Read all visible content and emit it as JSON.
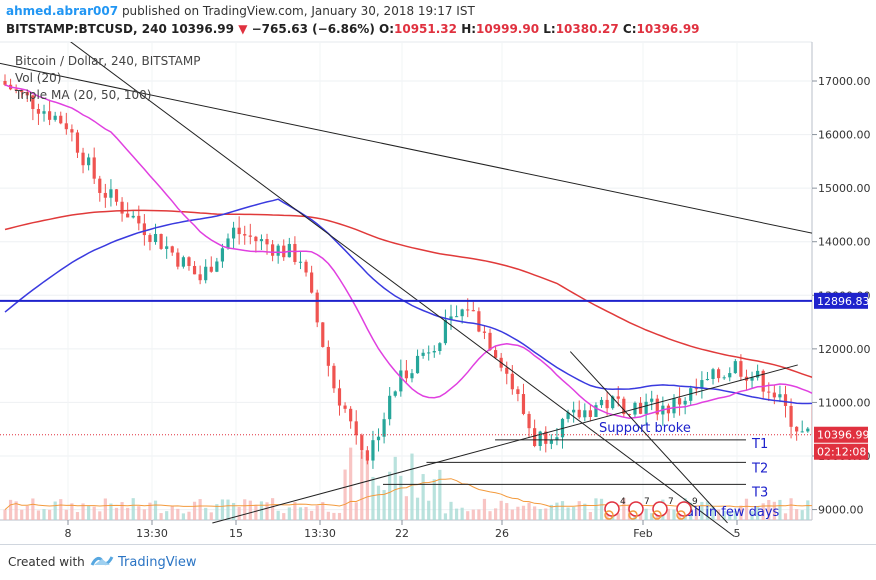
{
  "header": {
    "author": "ahmed.abrar007",
    "publish_text": "published on TradingView.com, January 30, 2018 19:17 IST"
  },
  "symbol_bar": {
    "symbol": "BITSTAMP:BTCUSD, 240",
    "last": "10396.99",
    "change": "−765.63 (−6.86%)",
    "open_label": "O:",
    "open": "10951.32",
    "high_label": "H:",
    "high": "10999.90",
    "low_label": "L:",
    "low": "10380.27",
    "close_label": "C:",
    "close": "10396.99",
    "down_color": "#e0313f"
  },
  "legend": {
    "title": "Bitcoin / Dollar, 240, BITSTAMP",
    "vol": "Vol (20)",
    "ma": "Triple MA (20, 50, 100)"
  },
  "footer": {
    "created_with": "Created with",
    "brand": "TradingView"
  },
  "chart_data": {
    "type": "candlestick",
    "y_axis": {
      "ticks": [
        9000,
        10000,
        11000,
        12000,
        13000,
        14000,
        15000,
        16000,
        17000
      ],
      "tick_labels": [
        "9000.00",
        "10000.00",
        "11000.00",
        "12000.00",
        "13000.00",
        "14000.00",
        "15000.00",
        "16000.00",
        "17000.00"
      ],
      "range": [
        8750,
        17700
      ]
    },
    "x_axis": {
      "tick_labels": [
        "8",
        "13:30",
        "15",
        "13:30",
        "22",
        "26",
        "Feb",
        "5"
      ],
      "range_days": [
        "Jan 6",
        "Feb 6"
      ]
    },
    "price_markers": [
      {
        "label": "12896.83",
        "value": 12896.83,
        "color": "#1e22cc"
      },
      {
        "label": "10396.99",
        "value": 10396.99,
        "color": "#e0313f"
      },
      {
        "label": "02:12:08",
        "color": "#e0313f"
      }
    ],
    "horizontal_line": {
      "value": 12896.83,
      "color": "#1e22cc"
    },
    "last_price_line": {
      "value": 10396.99,
      "color": "#e0313f"
    },
    "targets": [
      {
        "label": "T1",
        "value": 10300
      },
      {
        "label": "T2",
        "value": 9880
      },
      {
        "label": "T3",
        "value": 9470
      }
    ],
    "annotations": [
      {
        "text": "Support broke",
        "color": "#1e22cc"
      },
      {
        "text": "all in few days",
        "color": "#1e22cc"
      }
    ],
    "event_badges": [
      "4",
      "7",
      "7",
      "9"
    ],
    "ma_colors": {
      "ma20": "#e040e0",
      "ma50": "#3a3adf",
      "ma100": "#e03a3a"
    },
    "candle_colors": {
      "up": "#26a69a",
      "down": "#ef5350"
    },
    "key_prices": [
      {
        "time": "Jan 6",
        "price": 17000
      },
      {
        "time": "Jan 8",
        "price": 16200
      },
      {
        "time": "Jan 9",
        "price": 15000
      },
      {
        "time": "Jan 11",
        "price": 13900
      },
      {
        "time": "Jan 12",
        "price": 13300
      },
      {
        "time": "Jan 13",
        "price": 14200
      },
      {
        "time": "Jan 15",
        "price": 13700
      },
      {
        "time": "Jan 16",
        "price": 11300
      },
      {
        "time": "Jan 17",
        "price": 10000
      },
      {
        "time": "Jan 18",
        "price": 11500
      },
      {
        "time": "Jan 20",
        "price": 12800
      },
      {
        "time": "Jan 21",
        "price": 11800
      },
      {
        "time": "Jan 22",
        "price": 10300
      },
      {
        "time": "Jan 24",
        "price": 11000
      },
      {
        "time": "Jan 26",
        "price": 10900
      },
      {
        "time": "Jan 28",
        "price": 11700
      },
      {
        "time": "Jan 29",
        "price": 11300
      },
      {
        "time": "Jan 30",
        "price": 10397
      }
    ]
  }
}
